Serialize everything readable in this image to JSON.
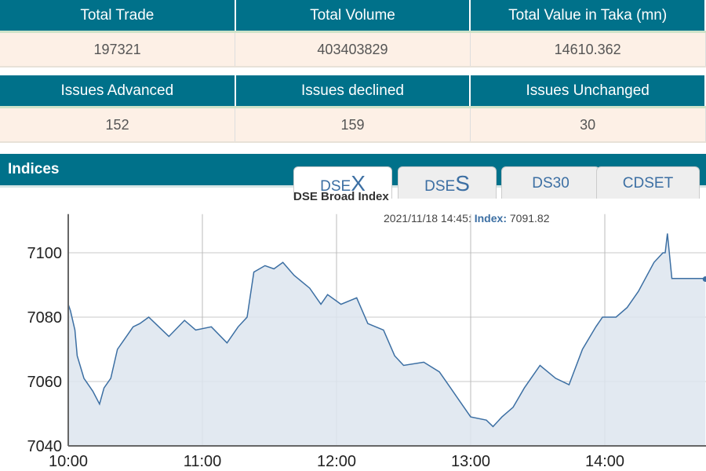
{
  "summary1": {
    "headers": [
      "Total Trade",
      "Total Volume",
      "Total Value in Taka (mn)"
    ],
    "values": [
      "197321",
      "403403829",
      "14610.362"
    ]
  },
  "summary2": {
    "headers": [
      "Issues Advanced",
      "Issues declined",
      "Issues Unchanged"
    ],
    "values": [
      "152",
      "159",
      "30"
    ]
  },
  "indices": {
    "title": "Indices",
    "tabs": [
      {
        "prefix": "DSE",
        "suffix": "X"
      },
      {
        "prefix": "DSE",
        "suffix": "S"
      },
      {
        "prefix": "DS30",
        "suffix": ""
      },
      {
        "prefix": "CDSET",
        "suffix": ""
      }
    ],
    "active_tab": 0
  },
  "colors": {
    "header": "#00718a",
    "line": "#3c6fa3",
    "fill": "#dde5ef"
  },
  "chart_data": {
    "type": "area",
    "title": "DSE Broad Index",
    "tooltip": {
      "time": "2021/11/18 14:45:",
      "label": "Index",
      "value": "7091.82"
    },
    "xlabel": "",
    "ylabel": "",
    "xticks": [
      "10:00",
      "11:00",
      "12:00",
      "13:00",
      "14:00"
    ],
    "yticks": [
      7040,
      7060,
      7080,
      7100
    ],
    "ylim": [
      7040,
      7112
    ],
    "xlim": [
      "10:00",
      "14:45"
    ],
    "grid": true,
    "x": [
      "10:00",
      "10:01",
      "10:03",
      "10:04",
      "10:07",
      "10:11",
      "10:14",
      "10:16",
      "10:19",
      "10:22",
      "10:25",
      "10:29",
      "10:32",
      "10:36",
      "10:39",
      "10:45",
      "10:52",
      "10:57",
      "11:04",
      "11:11",
      "11:16",
      "11:20",
      "11:23",
      "11:28",
      "11:32",
      "11:36",
      "11:41",
      "11:48",
      "11:53",
      "11:56",
      "12:02",
      "12:09",
      "12:14",
      "12:21",
      "12:26",
      "12:30",
      "12:39",
      "12:46",
      "12:51",
      "12:56",
      "13:00",
      "13:07",
      "13:10",
      "13:14",
      "13:19",
      "13:24",
      "13:31",
      "13:38",
      "13:44",
      "13:50",
      "13:56",
      "13:59",
      "14:05",
      "14:10",
      "14:15",
      "14:22",
      "14:26",
      "14:27",
      "14:28",
      "14:30",
      "14:44",
      "14:45"
    ],
    "y": [
      7084,
      7082,
      7076,
      7068,
      7061,
      7057,
      7053,
      7058,
      7061,
      7070,
      7073,
      7077,
      7078,
      7080,
      7078,
      7074,
      7079,
      7076,
      7077,
      7072,
      7077,
      7080,
      7094,
      7096,
      7095,
      7097,
      7093,
      7089,
      7084,
      7087,
      7084,
      7086,
      7078,
      7076,
      7068,
      7065,
      7066,
      7063,
      7058,
      7053,
      7049,
      7048,
      7046,
      7049,
      7052,
      7058,
      7065,
      7061,
      7059,
      7070,
      7077,
      7080,
      7080,
      7083,
      7088,
      7097,
      7100,
      7100,
      7106,
      7092,
      7092,
      7091.82
    ]
  }
}
